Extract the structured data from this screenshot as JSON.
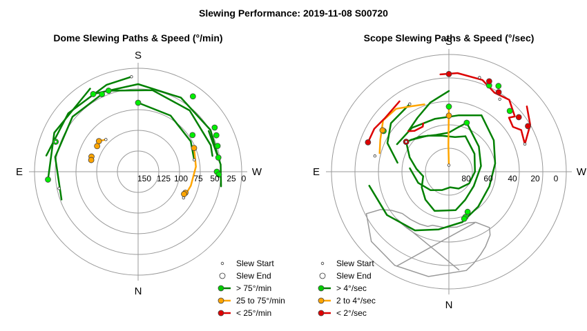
{
  "title": "Slewing Performance: 2019-11-08 S00720",
  "chart_data": [
    {
      "type": "polar-path",
      "title": "Dome Slewing Paths & Speed (°/min)",
      "directions": {
        "top": "S",
        "bottom": "N",
        "left": "E",
        "right": "W"
      },
      "radial_ticks": [
        "150",
        "125",
        "100",
        "75",
        "50",
        "25",
        "0"
      ],
      "radial_range": [
        150,
        0
      ],
      "grid": true,
      "legend": {
        "placement": "bottom-right",
        "entries": [
          {
            "label": "Slew Start",
            "marker": "small-open-circle"
          },
          {
            "label": "Slew End",
            "marker": "open-circle"
          },
          {
            "label": "> 75°/min",
            "color": "#00cc00"
          },
          {
            "label": "25 to 75°/min",
            "color": "#ffa500"
          },
          {
            "label": "< 25°/min",
            "color": "#dd0000"
          }
        ]
      },
      "colors": {
        "fast": "#008000",
        "medium": "#ffa500",
        "slow": "#dd0000",
        "fast_marker": "#00ee00",
        "medium_marker": "#ffa500",
        "slow_marker": "#dd0000"
      },
      "paths": [
        {
          "category": "fast",
          "points": [
            [
              180,
              100
            ],
            [
              210,
              94
            ],
            [
              240,
              88
            ],
            [
              258,
              83
            ]
          ]
        },
        {
          "category": "fast",
          "points": [
            [
              160,
              125
            ],
            [
              190,
              120
            ],
            [
              220,
              116
            ],
            [
              250,
              112
            ],
            [
              258,
              110
            ]
          ]
        },
        {
          "category": "fast",
          "points": [
            [
              150,
              130
            ],
            [
              180,
              127
            ],
            [
              210,
              124
            ],
            [
              240,
              121
            ],
            [
              260,
              118
            ]
          ]
        },
        {
          "category": "fast",
          "points": [
            [
              70,
              118
            ],
            [
              100,
              122
            ],
            [
              130,
              124
            ],
            [
              155,
              124
            ]
          ]
        },
        {
          "category": "fast",
          "points": [
            [
              100,
              135
            ],
            [
              130,
              132
            ],
            [
              160,
              134
            ],
            [
              176,
              138
            ]
          ]
        },
        {
          "category": "fast",
          "points": [
            [
              85,
              131
            ],
            [
              115,
              134
            ],
            [
              150,
              139
            ]
          ]
        },
        {
          "category": "fast",
          "points": [
            [
              240,
              118
            ],
            [
              265,
              120
            ],
            [
              280,
              122
            ]
          ]
        },
        {
          "category": "medium",
          "points": [
            [
              247,
              88
            ],
            [
              265,
              84
            ],
            [
              285,
              79
            ],
            [
              300,
              76
            ]
          ]
        },
        {
          "category": "medium",
          "points": [
            [
              128,
              72
            ],
            [
              135,
              66
            ]
          ]
        }
      ],
      "starts": [
        [
          78,
          117
        ],
        [
          258,
          83
        ],
        [
          176,
          138
        ],
        [
          300,
          76
        ],
        [
          135,
          66
        ],
        [
          110,
          127
        ]
      ],
      "ends": [
        {
          "category": "fast",
          "p": [
            180,
            100
          ]
        },
        {
          "category": "fast",
          "p": [
            236,
            95
          ]
        },
        {
          "category": "fast",
          "p": [
            160,
            125
          ]
        },
        {
          "category": "fast",
          "p": [
            270,
            114
          ]
        },
        {
          "category": "fast",
          "p": [
            150,
            130
          ]
        },
        {
          "category": "fast",
          "p": [
            155,
            124
          ]
        },
        {
          "category": "fast",
          "p": [
            260,
            118
          ]
        },
        {
          "category": "fast",
          "p": [
            252,
            121
          ]
        },
        {
          "category": "fast",
          "p": [
            272,
            117
          ]
        },
        {
          "category": "fast",
          "p": [
            216,
            135
          ]
        },
        {
          "category": "fast",
          "p": [
            240,
            128
          ]
        },
        {
          "category": "fast",
          "p": [
            245,
            125
          ]
        },
        {
          "category": "fast",
          "p": [
            110,
            127
          ]
        },
        {
          "category": "fast",
          "p": [
            85,
            131
          ]
        },
        {
          "category": "medium",
          "p": [
            247,
            88
          ]
        },
        {
          "category": "medium",
          "p": [
            128,
            72
          ]
        },
        {
          "category": "medium",
          "p": [
            122,
            70
          ]
        },
        {
          "category": "medium",
          "p": [
            108,
            71
          ]
        },
        {
          "category": "medium",
          "p": [
            104,
            70
          ]
        },
        {
          "category": "medium",
          "p": [
            294,
            75
          ]
        },
        {
          "category": "medium",
          "p": [
            296,
            74
          ]
        }
      ]
    },
    {
      "type": "polar-path",
      "title": "Scope Slewing Paths & Speed (°/sec)",
      "directions": {
        "top": "S",
        "bottom": "N",
        "left": "E",
        "right": "W"
      },
      "radial_ticks": [
        "80",
        "60",
        "40",
        "20",
        "0"
      ],
      "radial_range": [
        90,
        0
      ],
      "grid": true,
      "legend": {
        "placement": "bottom-right",
        "entries": [
          {
            "label": "Slew Start",
            "marker": "small-open-circle"
          },
          {
            "label": "Slew End",
            "marker": "open-circle"
          },
          {
            "label": "> 4°/sec",
            "color": "#00cc00"
          },
          {
            "label": "2 to 4°/sec",
            "color": "#ffa500"
          },
          {
            "label": "< 2°/sec",
            "color": "#dd0000"
          }
        ]
      },
      "colors": {
        "fast": "#008000",
        "medium": "#ffa500",
        "slow": "#dd0000",
        "fast_marker": "#00ee00",
        "medium_marker": "#ffa500",
        "slow_marker": "#dd0000",
        "limit": "#999999"
      },
      "paths": [
        {
          "category": "fast",
          "points": [
            [
              125,
              40
            ],
            [
              140,
              35
            ],
            [
              160,
              30
            ],
            [
              180,
              30
            ],
            [
              190,
              34
            ],
            [
              200,
              40
            ]
          ]
        },
        {
          "category": "fast",
          "points": [
            [
              200,
              40
            ],
            [
              230,
              30
            ],
            [
              260,
              25
            ],
            [
              300,
              22
            ],
            [
              330,
              25
            ],
            [
              350,
              30
            ],
            [
              20,
              32
            ],
            [
              40,
              28
            ],
            [
              60,
              24
            ],
            [
              80,
              20
            ]
          ]
        },
        {
          "category": "fast",
          "points": [
            [
              80,
              20
            ],
            [
              95,
              25
            ],
            [
              110,
              32
            ],
            [
              125,
              40
            ]
          ]
        },
        {
          "category": "fast",
          "points": [
            [
              130,
              38
            ],
            [
              150,
              32
            ],
            [
              170,
              28
            ],
            [
              190,
              27
            ],
            [
              205,
              30
            ]
          ]
        },
        {
          "category": "fast",
          "points": [
            [
              205,
              30
            ],
            [
              235,
              24
            ],
            [
              270,
              20
            ],
            [
              300,
              18
            ],
            [
              330,
              15
            ],
            [
              355,
              12
            ],
            [
              20,
              15
            ],
            [
              45,
              20
            ],
            [
              70,
              25
            ],
            [
              95,
              30
            ]
          ]
        },
        {
          "category": "fast",
          "points": [
            [
              118,
              45
            ],
            [
              140,
              44
            ],
            [
              165,
              42
            ],
            [
              190,
              44
            ],
            [
              210,
              50
            ]
          ]
        },
        {
          "category": "fast",
          "points": [
            [
              210,
              50
            ],
            [
              235,
              42
            ],
            [
              260,
              36
            ],
            [
              290,
              33
            ],
            [
              320,
              35
            ],
            [
              345,
              40
            ],
            [
              10,
              45
            ],
            [
              30,
              52
            ],
            [
              55,
              58
            ],
            [
              80,
              62
            ]
          ]
        },
        {
          "category": "fast",
          "points": [
            [
              100,
              40
            ],
            [
              115,
              52
            ],
            [
              130,
              58
            ],
            [
              150,
              60
            ]
          ]
        },
        {
          "category": "fast",
          "points": [
            [
              180,
              62
            ],
            [
              165,
              55
            ],
            [
              150,
              48
            ],
            [
              135,
              44
            ]
          ]
        },
        {
          "category": "medium",
          "points": [
            [
              180,
              5
            ],
            [
              179,
              20
            ],
            [
              180,
              50
            ]
          ]
        },
        {
          "category": "medium",
          "points": [
            [
              160,
              55
            ],
            [
              150,
              58
            ],
            [
              140,
              63
            ],
            [
              128,
              64
            ],
            [
              115,
              58
            ],
            [
              105,
              55
            ]
          ]
        },
        {
          "category": "slow",
          "points": [
            [
              135,
              44
            ],
            [
              140,
              41
            ],
            [
              150,
              40
            ],
            [
              152,
              42
            ]
          ]
        },
        {
          "category": "slow",
          "points": [
            [
              175,
              75
            ],
            [
              185,
              76
            ],
            [
              200,
              75
            ],
            [
              210,
              70
            ],
            [
              220,
              72
            ],
            [
              230,
              66
            ],
            [
              228,
              62
            ],
            [
              235,
              60
            ],
            [
              240,
              64
            ],
            [
              250,
              62
            ],
            [
              240,
              72
            ],
            [
              230,
              78
            ]
          ]
        },
        {
          "category": "slow",
          "points": [
            [
              145,
              66
            ],
            [
              130,
              64
            ],
            [
              120,
              66
            ],
            [
              110,
              66
            ]
          ]
        }
      ],
      "limit_polygon": [
        [
          339,
          42
        ],
        [
          352,
          43
        ],
        [
          5,
          43
        ],
        [
          17,
          43
        ],
        [
          21,
          45
        ],
        [
          29,
          46
        ],
        [
          39,
          47
        ],
        [
          48,
          48
        ],
        [
          56,
          53
        ],
        [
          61,
          60
        ],
        [
          63,
          71
        ],
        [
          48,
          80
        ],
        [
          30,
          83
        ],
        [
          11,
          82
        ],
        [
          350,
          77
        ],
        [
          345,
          73
        ],
        [
          339,
          68
        ],
        [
          334,
          64
        ],
        [
          327,
          58
        ],
        [
          324,
          53
        ],
        [
          328,
          48
        ],
        [
          332,
          44
        ],
        [
          339,
          42
        ]
      ],
      "limit_lines": [
        [
          [
            333,
            44
          ],
          [
            29,
            83
          ]
        ],
        [
          [
            354,
            76
          ],
          [
            48,
            54
          ]
        ]
      ],
      "starts": [
        [
          180,
          5
        ],
        [
          125,
          40
        ],
        [
          150,
          60
        ],
        [
          250,
          62
        ],
        [
          198,
          76
        ],
        [
          215,
          68
        ],
        [
          102,
          58
        ]
      ],
      "ends": [
        {
          "category": "fast",
          "p": [
            180,
            50
          ]
        },
        {
          "category": "fast",
          "p": [
            125,
            40
          ]
        },
        {
          "category": "fast",
          "p": [
            200,
            40
          ]
        },
        {
          "category": "fast",
          "p": [
            335,
            34
          ]
        },
        {
          "category": "fast",
          "p": [
            340,
            37
          ]
        },
        {
          "category": "fast",
          "p": [
            342,
            38
          ]
        },
        {
          "category": "fast",
          "p": [
            122,
            59
          ]
        },
        {
          "category": "fast",
          "p": [
            210,
            76
          ]
        },
        {
          "category": "fast",
          "p": [
            225,
            66
          ]
        },
        {
          "category": "fast",
          "p": [
            205,
            73
          ]
        },
        {
          "category": "medium",
          "p": [
            180,
            43
          ]
        },
        {
          "category": "medium",
          "p": [
            122,
            60
          ]
        },
        {
          "category": "slow",
          "p": [
            125,
            40
          ]
        },
        {
          "category": "slow",
          "p": [
            204,
            76
          ]
        },
        {
          "category": "slow",
          "p": [
            212,
            72
          ]
        },
        {
          "category": "slow",
          "p": [
            180,
            75
          ]
        },
        {
          "category": "slow",
          "p": [
            110,
            66
          ]
        },
        {
          "category": "slow",
          "p": [
            240,
            70
          ]
        },
        {
          "category": "slow",
          "p": [
            232,
            68
          ]
        }
      ]
    }
  ]
}
